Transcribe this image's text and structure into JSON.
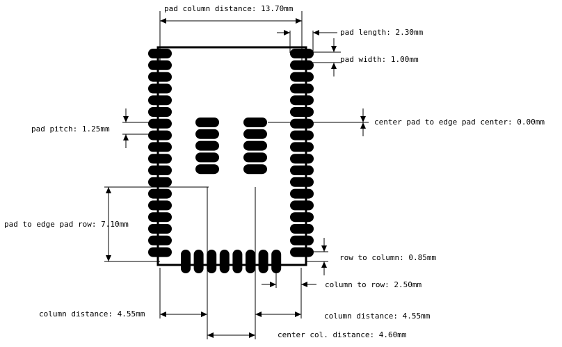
{
  "labels": {
    "pad_column_distance": "pad column distance: 13.70mm",
    "pad_length": "pad length: 2.30mm",
    "pad_width": "pad width: 1.00mm",
    "pad_pitch": "pad pitch: 1.25mm",
    "center_pad_to_edge": "center pad to edge pad center: 0.00mm",
    "pad_to_edge_row": "pad to edge pad row: 7.10mm",
    "row_to_column": "row to column: 0.85mm",
    "column_to_row": "column to row: 2.50mm",
    "column_distance_left": "column distance: 4.55mm",
    "column_distance_right": "column distance: 4.55mm",
    "center_col_distance": "center col. distance: 4.60mm"
  },
  "footprint": {
    "edge_column_pads": 18,
    "center_column_pads": 5,
    "bottom_row_pads": 8
  }
}
